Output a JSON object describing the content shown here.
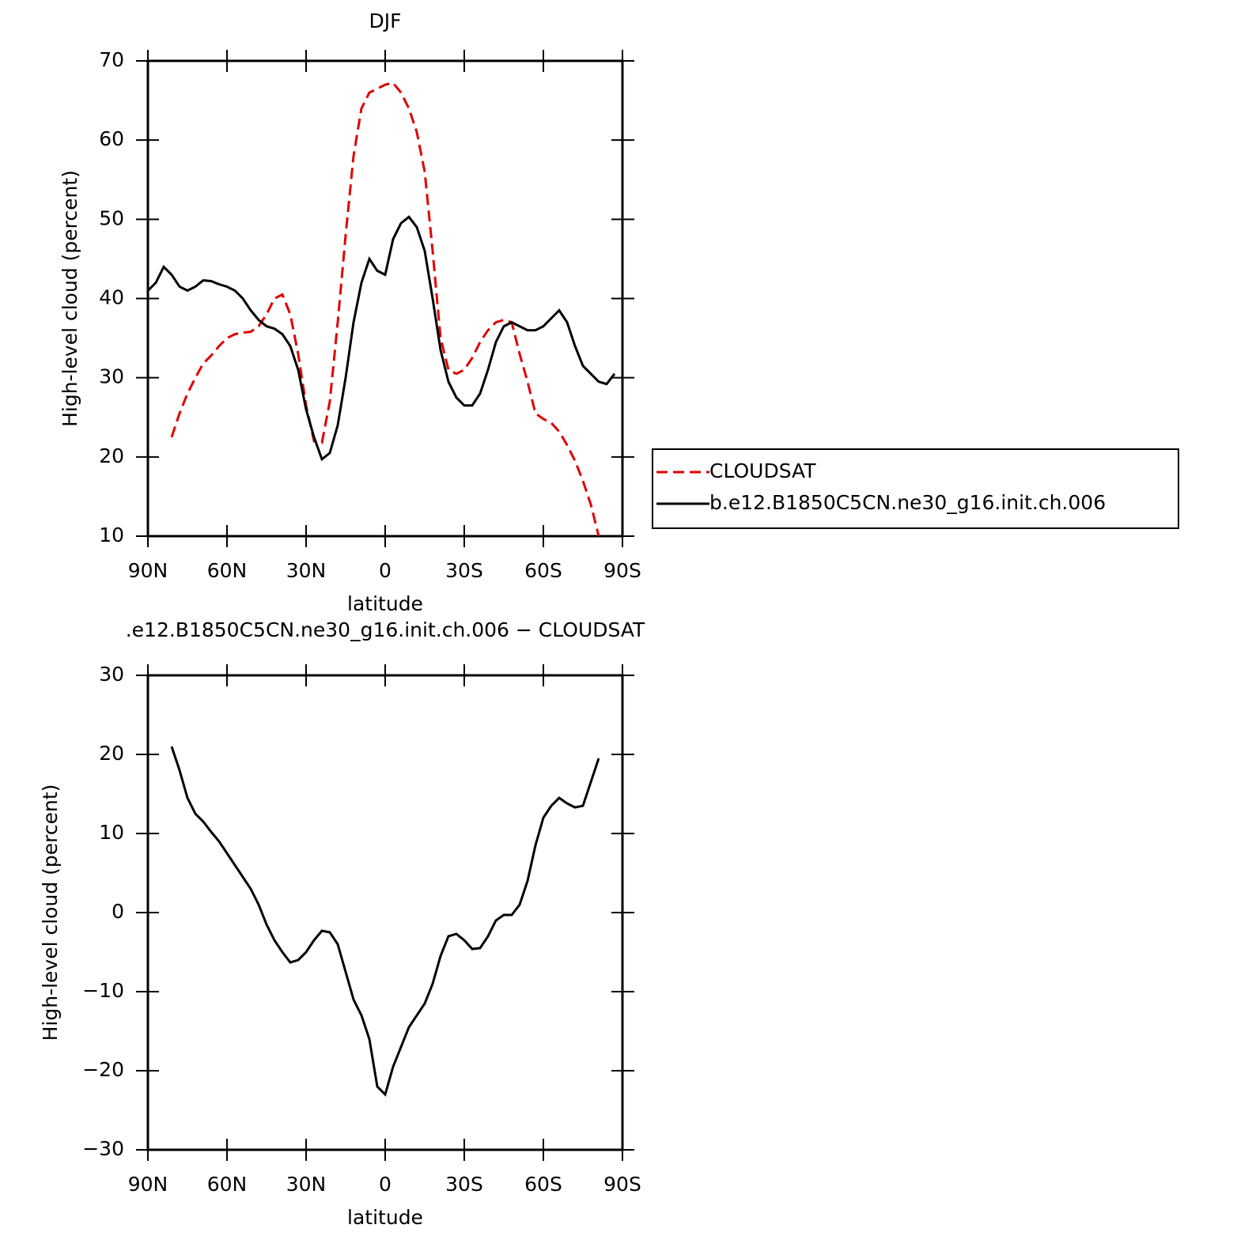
{
  "chart_data": [
    {
      "type": "line",
      "title": "DJF",
      "x_label": "latitude",
      "y_label": "High-level cloud (percent)",
      "x": [
        90,
        87,
        84,
        81,
        78,
        75,
        72,
        69,
        66,
        63,
        60,
        57,
        54,
        51,
        48,
        45,
        42,
        39,
        36,
        33,
        30,
        27,
        24,
        21,
        18,
        15,
        12,
        9,
        6,
        3,
        0,
        -3,
        -6,
        -9,
        -12,
        -15,
        -18,
        -21,
        -24,
        -27,
        -30,
        -33,
        -36,
        -39,
        -42,
        -45,
        -48,
        -51,
        -54,
        -57,
        -60,
        -63,
        -66,
        -69,
        -72,
        -75,
        -78,
        -81,
        -84,
        -87
      ],
      "series": [
        {
          "name": "CLOUDSAT",
          "color": "#e00000",
          "line_style": "dashed",
          "values": [
            null,
            null,
            null,
            22.5,
            25.5,
            28,
            30,
            31.8,
            32.8,
            34,
            35,
            35.5,
            35.7,
            35.8,
            36.5,
            38,
            40,
            40.5,
            38,
            33,
            26.5,
            22,
            21.8,
            27,
            37,
            48,
            58,
            64,
            66,
            66.5,
            67,
            67.2,
            66,
            64,
            61,
            56,
            46,
            35,
            31,
            30.5,
            31,
            32.5,
            34.5,
            36,
            37,
            37.3,
            37,
            33,
            29.5,
            25.5,
            24.8,
            24.3,
            23.2,
            21.5,
            19.5,
            17,
            14,
            10,
            null,
            null
          ]
        },
        {
          "name": "b.e12.B1850C5CN.ne30_g16.init.ch.006",
          "color": "#000000",
          "line_style": "solid",
          "values": [
            41,
            42,
            44,
            43,
            41.5,
            41,
            41.5,
            42.3,
            42.2,
            41.8,
            41.5,
            41,
            40,
            38.5,
            37.3,
            36.5,
            36.2,
            35.5,
            34,
            31,
            26,
            22.5,
            19.7,
            20.5,
            24,
            30,
            37,
            42,
            45,
            43.5,
            43,
            47.5,
            49.5,
            50.3,
            49,
            46,
            40,
            33.5,
            29.5,
            27.5,
            26.5,
            26.5,
            28,
            31,
            34.5,
            36.5,
            37,
            36.5,
            36,
            36,
            36.5,
            37.5,
            38.5,
            37,
            34,
            31.5,
            30.5,
            29.5,
            29.2,
            30.5
          ]
        }
      ],
      "xlim": [
        90,
        -90
      ],
      "xticks": [
        {
          "value": 90,
          "label": "90N"
        },
        {
          "value": 60,
          "label": "60N"
        },
        {
          "value": 30,
          "label": "30N"
        },
        0,
        {
          "value": -30,
          "label": "30S"
        },
        {
          "value": -60,
          "label": "60S"
        },
        {
          "value": -90,
          "label": "90S"
        }
      ],
      "ylim": [
        10,
        70
      ],
      "yticks": [
        10,
        20,
        30,
        40,
        50,
        60,
        70
      ],
      "legend": "right"
    },
    {
      "type": "line",
      "title": ".e12.B1850C5CN.ne30_g16.init.ch.006 − CLOUDSAT",
      "x_label": "latitude",
      "y_label": "High-level cloud (percent)",
      "x": [
        81,
        78,
        75,
        72,
        69,
        66,
        63,
        60,
        57,
        54,
        51,
        48,
        45,
        42,
        39,
        36,
        33,
        30,
        27,
        24,
        21,
        18,
        15,
        12,
        9,
        6,
        3,
        0,
        -3,
        -6,
        -9,
        -12,
        -15,
        -18,
        -21,
        -24,
        -27,
        -30,
        -33,
        -36,
        -39,
        -42,
        -45,
        -48,
        -51,
        -54,
        -57,
        -60,
        -63,
        -66,
        -69,
        -72,
        -75,
        -78,
        -81
      ],
      "series": [
        {
          "color": "#000000",
          "line_style": "solid",
          "values": [
            21,
            18,
            14.5,
            12.5,
            11.5,
            10.2,
            9,
            7.5,
            6,
            4.5,
            3,
            1,
            -1.5,
            -3.5,
            -5,
            -6.3,
            -6,
            -5,
            -3.5,
            -2.3,
            -2.5,
            -4,
            -7.5,
            -11,
            -13,
            -16,
            -22,
            -23,
            -19.5,
            -17,
            -14.5,
            -13,
            -11.5,
            -9,
            -5.5,
            -3,
            -2.7,
            -3.5,
            -4.6,
            -4.5,
            -3,
            -1,
            -0.3,
            -0.3,
            1,
            4,
            8.5,
            12,
            13.5,
            14.5,
            13.8,
            13.3,
            13.5,
            16.5,
            19.5
          ]
        }
      ],
      "xlim": [
        90,
        -90
      ],
      "xticks": [
        {
          "value": 90,
          "label": "90N"
        },
        {
          "value": 60,
          "label": "60N"
        },
        {
          "value": 30,
          "label": "30N"
        },
        0,
        {
          "value": -30,
          "label": "30S"
        },
        {
          "value": -60,
          "label": "60S"
        },
        {
          "value": -90,
          "label": "90S"
        }
      ],
      "ylim": [
        -30,
        30
      ],
      "yticks": [
        {
          "value": -30,
          "label": "−30"
        },
        {
          "value": -20,
          "label": "−20"
        },
        {
          "value": -10,
          "label": "−10"
        },
        0,
        10,
        20,
        30
      ]
    }
  ]
}
